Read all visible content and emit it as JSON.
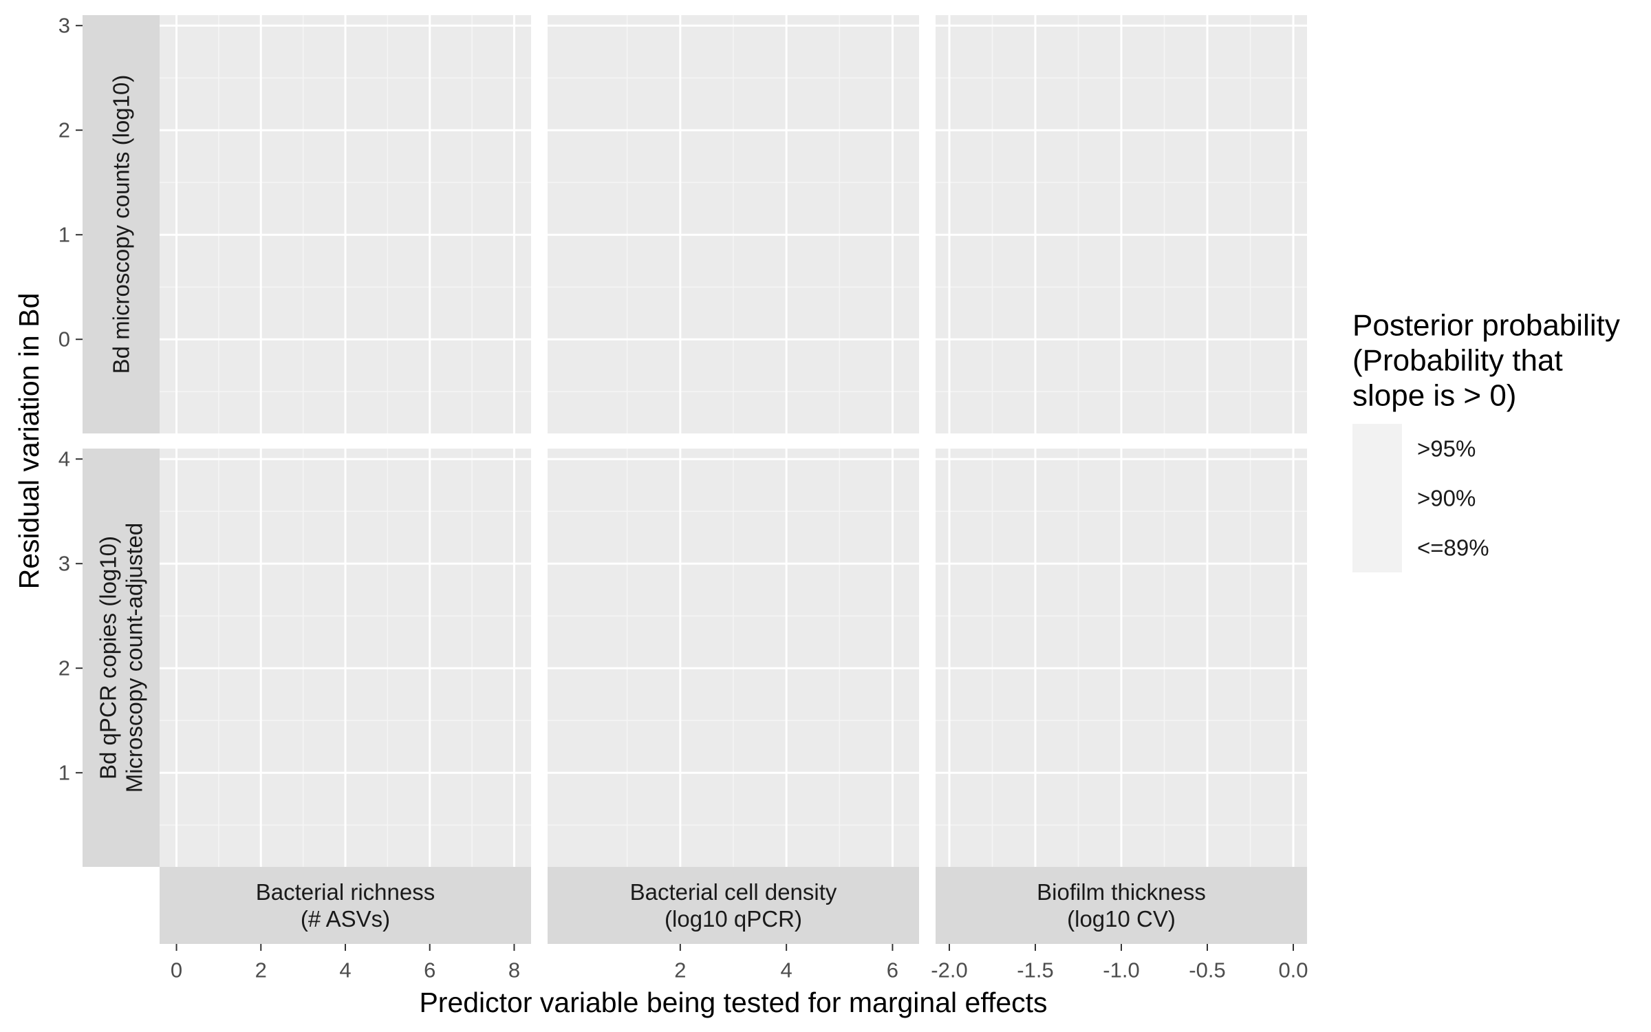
{
  "chart_data": {
    "type": "scatter",
    "facet_layout": "grid",
    "xlabel": "Predictor variable being tested for marginal effects",
    "ylabel": "Residual variation in Bd",
    "columns": [
      {
        "strip": [
          "Bacterial richness",
          "(# ASVs)"
        ],
        "xlim": [
          -0.4,
          8.4
        ],
        "xticks": [
          0,
          2,
          4,
          6,
          8
        ],
        "xtick_labels": [
          "0",
          "2",
          "4",
          "6",
          "8"
        ]
      },
      {
        "strip": [
          "Bacterial cell density",
          "(log10 qPCR)"
        ],
        "xlim": [
          -0.5,
          6.5
        ],
        "xticks": [
          2,
          4,
          6
        ],
        "xtick_labels": [
          "2",
          "4",
          "6"
        ]
      },
      {
        "strip": [
          "Biofilm thickness",
          "(log10 CV)"
        ],
        "xlim": [
          -2.08,
          0.08
        ],
        "xticks": [
          -2.0,
          -1.5,
          -1.0,
          -0.5,
          0.0
        ],
        "xtick_labels": [
          "-2.0",
          "-1.5",
          "-1.0",
          "-0.5",
          "0.0"
        ]
      }
    ],
    "rows": [
      {
        "strip": [
          "Bd microscopy counts (log10)"
        ],
        "ylim": [
          -0.9,
          3.1
        ],
        "yticks": [
          0,
          1,
          2,
          3
        ],
        "ytick_labels": [
          "0",
          "1",
          "2",
          "3"
        ]
      },
      {
        "strip": [
          "Bd qPCR copies (log10)",
          "Microscopy count-adjusted"
        ],
        "ylim": [
          0.1,
          4.1
        ],
        "yticks": [
          1,
          2,
          3,
          4
        ],
        "ytick_labels": [
          "1",
          "2",
          "3",
          "4"
        ]
      }
    ],
    "series": [],
    "grid": true,
    "legend": {
      "title": [
        "Posterior probability",
        "(Probability that",
        "slope is > 0)"
      ],
      "entries": [
        ">95%",
        ">90%",
        "<=89%"
      ],
      "position": "right"
    }
  },
  "colors": {
    "panel_background": "#ebebeb",
    "strip_background": "#d9d9d9",
    "grid_major": "#ffffff",
    "grid_minor": "#f5f5f5",
    "legend_key": "#f2f2f2"
  }
}
